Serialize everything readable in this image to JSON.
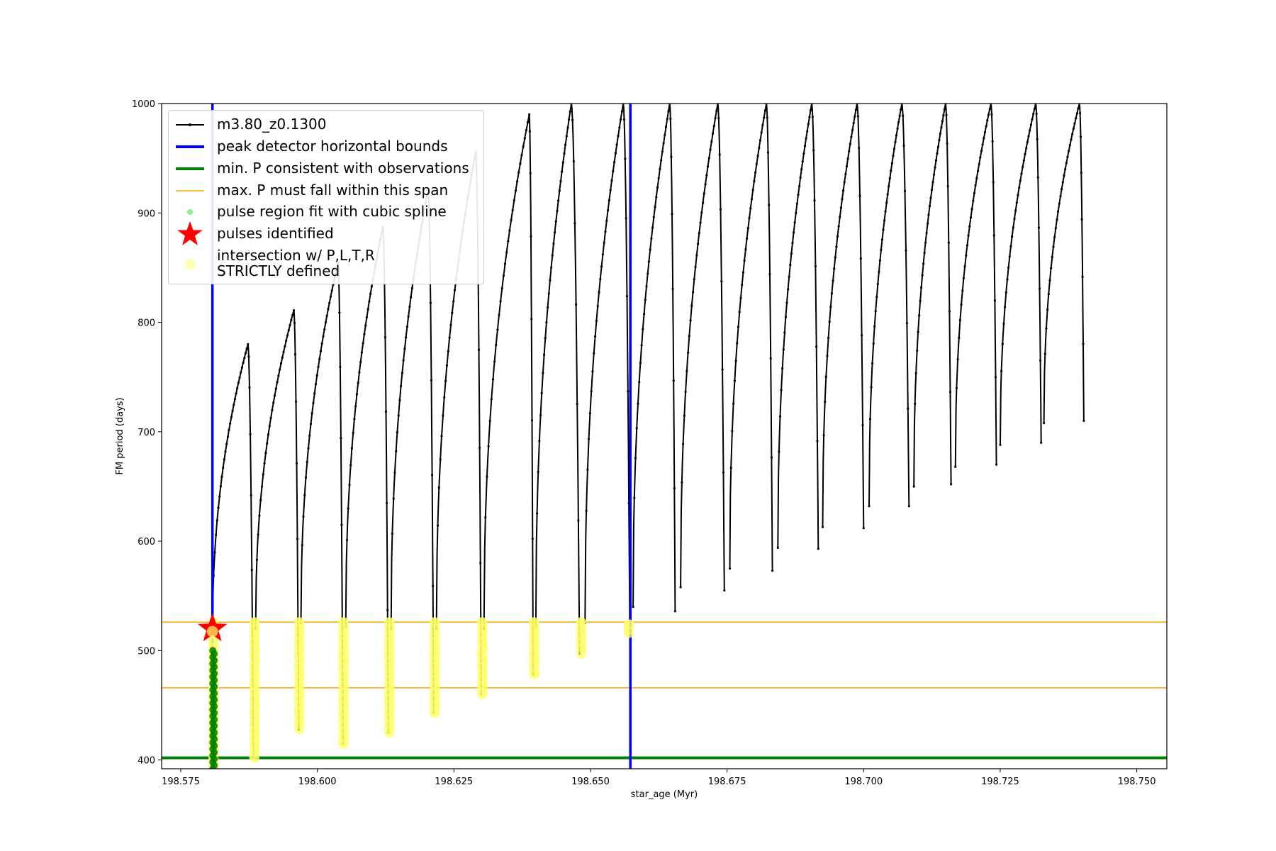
{
  "chart_data": {
    "type": "scatter",
    "xlabel": "star_age (Myr)",
    "ylabel": "FM period (days)",
    "xlim": [
      198.5715,
      198.7555
    ],
    "ylim": [
      392,
      1000
    ],
    "xticks": [
      "198.575",
      "198.600",
      "198.625",
      "198.650",
      "198.675",
      "198.700",
      "198.725",
      "198.750"
    ],
    "xtick_values": [
      198.575,
      198.6,
      198.625,
      198.65,
      198.675,
      198.7,
      198.725,
      198.75
    ],
    "yticks": [
      "400",
      "500",
      "600",
      "700",
      "800",
      "900",
      "1000"
    ],
    "ytick_values": [
      400,
      500,
      600,
      700,
      800,
      900,
      1000
    ],
    "grid": false,
    "legend_placement": "upper-left",
    "model_track": {
      "name": "m3.80_z0.1300",
      "color": "#000000",
      "pulses": [
        {
          "start_age": 198.5808,
          "start_period": 510,
          "peak_age": 198.5873,
          "peak_period": 780,
          "drop_age": 198.5883,
          "min_period": 402
        },
        {
          "start_age": 198.5887,
          "start_period": 520,
          "peak_age": 198.5957,
          "peak_period": 811,
          "drop_age": 198.5966,
          "min_period": 428
        },
        {
          "start_age": 198.597,
          "start_period": 525,
          "peak_age": 198.6038,
          "peak_period": 855,
          "drop_age": 198.6047,
          "min_period": 415
        },
        {
          "start_age": 198.6052,
          "start_period": 522,
          "peak_age": 198.612,
          "peak_period": 887,
          "drop_age": 198.613,
          "min_period": 425
        },
        {
          "start_age": 198.6135,
          "start_period": 520,
          "peak_age": 198.6203,
          "peak_period": 922,
          "drop_age": 198.6213,
          "min_period": 443
        },
        {
          "start_age": 198.6218,
          "start_period": 520,
          "peak_age": 198.629,
          "peak_period": 956,
          "drop_age": 198.63,
          "min_period": 460
        },
        {
          "start_age": 198.6305,
          "start_period": 520,
          "peak_age": 198.6388,
          "peak_period": 990,
          "drop_age": 198.6395,
          "min_period": 478
        },
        {
          "start_age": 198.64,
          "start_period": 522,
          "peak_age": 198.6465,
          "peak_period": 1000,
          "drop_age": 198.648,
          "min_period": 497
        },
        {
          "start_age": 198.649,
          "start_period": 525,
          "peak_age": 198.656,
          "peak_period": 1000,
          "drop_age": 198.6572,
          "min_period": 518
        },
        {
          "start_age": 198.6578,
          "start_period": 540,
          "peak_age": 198.6645,
          "peak_period": 1000,
          "drop_age": 198.6655,
          "min_period": 536
        },
        {
          "start_age": 198.6665,
          "start_period": 558,
          "peak_age": 198.6733,
          "peak_period": 1000,
          "drop_age": 198.6745,
          "min_period": 555
        },
        {
          "start_age": 198.6755,
          "start_period": 575,
          "peak_age": 198.6822,
          "peak_period": 1000,
          "drop_age": 198.6833,
          "min_period": 573
        },
        {
          "start_age": 198.6843,
          "start_period": 594,
          "peak_age": 198.6905,
          "peak_period": 1000,
          "drop_age": 198.6917,
          "min_period": 593
        },
        {
          "start_age": 198.6925,
          "start_period": 613,
          "peak_age": 198.6988,
          "peak_period": 1000,
          "drop_age": 198.7,
          "min_period": 612
        },
        {
          "start_age": 198.701,
          "start_period": 632,
          "peak_age": 198.707,
          "peak_period": 1000,
          "drop_age": 198.7083,
          "min_period": 632
        },
        {
          "start_age": 198.7092,
          "start_period": 650,
          "peak_age": 198.715,
          "peak_period": 1000,
          "drop_age": 198.716,
          "min_period": 652
        },
        {
          "start_age": 198.7168,
          "start_period": 668,
          "peak_age": 198.7233,
          "peak_period": 1000,
          "drop_age": 198.7243,
          "min_period": 670
        },
        {
          "start_age": 198.725,
          "start_period": 688,
          "peak_age": 198.7315,
          "peak_period": 1000,
          "drop_age": 198.7325,
          "min_period": 690
        },
        {
          "start_age": 198.733,
          "start_period": 708,
          "peak_age": 198.7395,
          "peak_period": 1000,
          "drop_age": 198.7403,
          "min_period": 710
        }
      ]
    },
    "peak_detector_bounds": {
      "name": "peak detector horizontal bounds",
      "x": [
        198.5808,
        198.6573
      ],
      "color": "#0000ff"
    },
    "min_period_line": {
      "name": "min. P consistent with observations",
      "y": 402,
      "color": "#008000"
    },
    "max_period_span": {
      "name": "max. P must fall within this span",
      "y": [
        466,
        526
      ],
      "color": "#ffa500"
    },
    "spline_fit_region": {
      "name": "pulse region fit with cubic spline",
      "age": 198.581,
      "period_range": [
        392,
        500
      ],
      "color": "#008000",
      "legend_color": "#90ee90"
    },
    "pulses_identified": [
      {
        "name": "pulses identified",
        "age": 198.5808,
        "period": 520,
        "color": "#ff0000"
      }
    ],
    "intersections": {
      "name": "intersection w/ P,L,T,R STRICTLY defined",
      "color": "#ffff66",
      "segments": [
        {
          "age": 198.581,
          "period_range": [
            392,
            526
          ]
        },
        {
          "age": 198.5885,
          "period_range": [
            402,
            526
          ]
        },
        {
          "age": 198.5967,
          "period_range": [
            428,
            526
          ]
        },
        {
          "age": 198.6048,
          "period_range": [
            415,
            526
          ]
        },
        {
          "age": 198.6132,
          "period_range": [
            425,
            526
          ]
        },
        {
          "age": 198.6215,
          "period_range": [
            443,
            526
          ]
        },
        {
          "age": 198.6302,
          "period_range": [
            460,
            526
          ]
        },
        {
          "age": 198.6397,
          "period_range": [
            478,
            526
          ]
        },
        {
          "age": 198.6483,
          "period_range": [
            497,
            526
          ]
        },
        {
          "age": 198.657,
          "period_range": [
            516,
            524
          ]
        }
      ]
    }
  },
  "legend": {
    "items": [
      {
        "label": "m3.80_z0.1300"
      },
      {
        "label": "peak detector horizontal bounds"
      },
      {
        "label": "min. P consistent with observations"
      },
      {
        "label": "max. P must fall within this span"
      },
      {
        "label": "pulse region fit with cubic spline"
      },
      {
        "label": "pulses identified"
      },
      {
        "label": "intersection w/ P,L,T,R"
      },
      {
        "label": "STRICTLY defined"
      }
    ]
  }
}
